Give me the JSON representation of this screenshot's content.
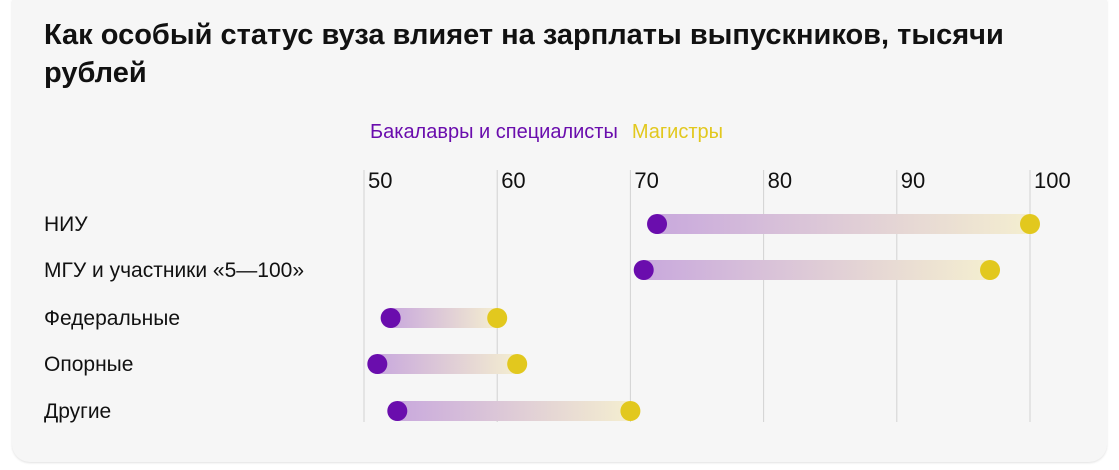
{
  "chart_data": {
    "type": "dumbbell",
    "title": "Как особый статус вуза влияет на зарплаты выпускников, тысячи рублей",
    "legend_position": "top",
    "series": [
      {
        "name": "Бакалавры и специалисты",
        "color": "#6a0dad",
        "values": [
          72,
          71,
          52,
          51,
          52.5
        ]
      },
      {
        "name": "Магистры",
        "color": "#e2c81e",
        "values": [
          100,
          97,
          60,
          61.5,
          70
        ]
      }
    ],
    "categories": [
      "НИУ",
      "МГУ и участники «5—100»",
      "Федеральные",
      "Опорные",
      "Другие"
    ],
    "x_ticks": [
      "50",
      "60",
      "70",
      "80",
      "90",
      "100"
    ],
    "xlim": [
      50,
      100
    ],
    "grid": true
  }
}
